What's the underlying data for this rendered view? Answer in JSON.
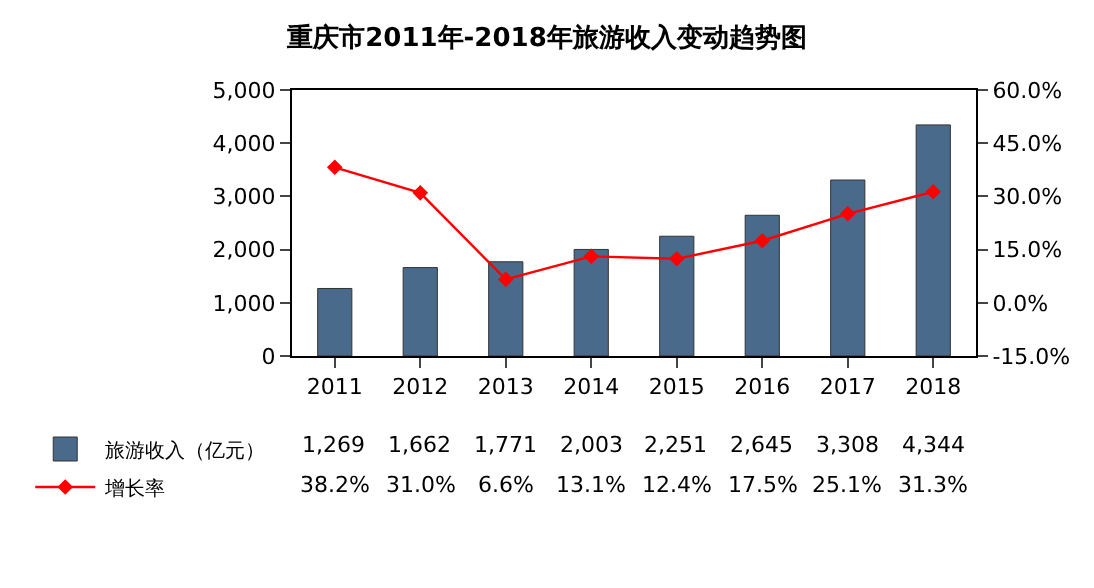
{
  "chart_data": {
    "type": "bar",
    "title": "重庆市2011年-2018年旅游收入变动趋势图",
    "categories": [
      "2011",
      "2012",
      "2013",
      "2014",
      "2015",
      "2016",
      "2017",
      "2018"
    ],
    "series": [
      {
        "name": "旅游收入（亿元）",
        "color": "#4a6a8c",
        "values": [
          1269,
          1662,
          1771,
          2003,
          2251,
          2645,
          3308,
          4344
        ],
        "value_labels": [
          "1,269",
          "1,662",
          "1,771",
          "2,003",
          "2,251",
          "2,645",
          "3,308",
          "4,344"
        ]
      },
      {
        "name": "增长率",
        "type": "line",
        "axis": "y2",
        "color": "#ff0000",
        "marker": "diamond",
        "values": [
          38.2,
          31.0,
          6.6,
          13.1,
          12.4,
          17.5,
          25.1,
          31.3
        ],
        "value_labels": [
          "38.2%",
          "31.0%",
          "6.6%",
          "13.1%",
          "12.4%",
          "17.5%",
          "25.1%",
          "31.3%"
        ]
      }
    ],
    "ylim": [
      0,
      5000
    ],
    "yticks": [
      0,
      {
        "value": 1000,
        "label": "1,000"
      },
      {
        "value": 2000,
        "label": "2,000"
      },
      {
        "value": 3000,
        "label": "3,000"
      },
      {
        "value": 4000,
        "label": "4,000"
      },
      {
        "value": 5000,
        "label": "5,000"
      }
    ],
    "y2lim": [
      -15,
      60
    ],
    "y2ticks": [
      {
        "value": -15,
        "label": "-15.0%"
      },
      {
        "value": 0,
        "label": "0.0%"
      },
      {
        "value": 15,
        "label": "15.0%"
      },
      {
        "value": 30,
        "label": "30.0%"
      },
      {
        "value": 45,
        "label": "45.0%"
      },
      {
        "value": 60,
        "label": "60.0%"
      }
    ],
    "grid": false,
    "legend": "bottom left"
  }
}
